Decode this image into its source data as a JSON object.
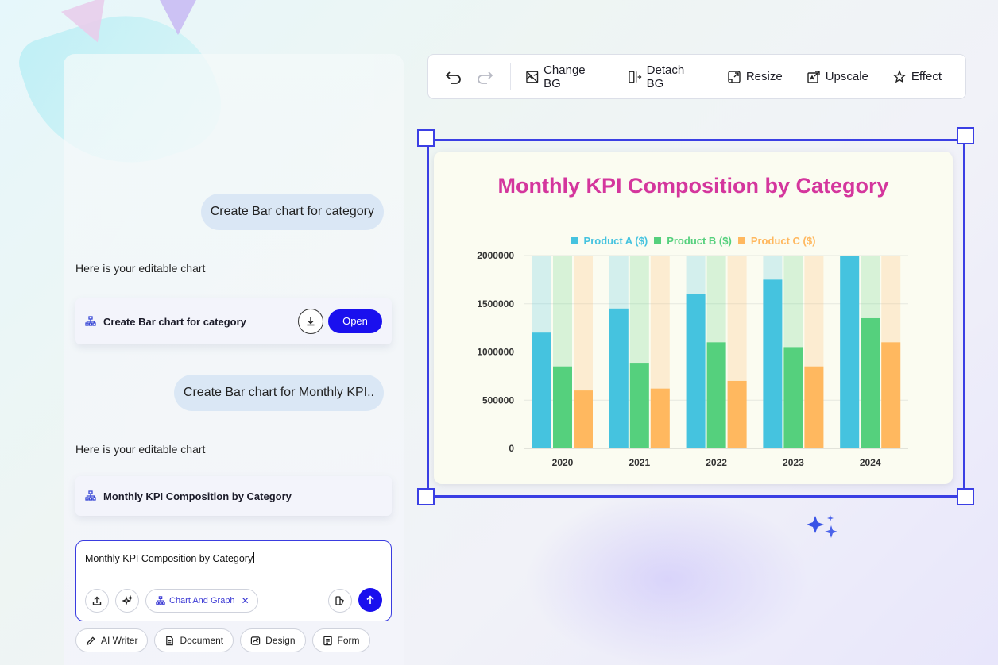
{
  "chat": {
    "messages": [
      {
        "role": "user",
        "text": "Create Bar chart for category"
      },
      {
        "role": "assistant",
        "text": "Here is your editable chart",
        "card_title": "Create Bar chart for category",
        "open_label": "Open"
      },
      {
        "role": "user",
        "text": "Create Bar chart for Monthly KPI.."
      },
      {
        "role": "assistant",
        "text": "Here is your editable chart",
        "card_title": "Monthly KPI Composition by Category"
      }
    ],
    "input": {
      "value": "Monthly KPI Composition by Category",
      "chip_label": "Chart And Graph"
    },
    "quick_actions": [
      "AI Writer",
      "Document",
      "Design",
      "Form"
    ]
  },
  "toolbar": {
    "change_bg": "Change BG",
    "detach_bg": "Detach BG",
    "resize": "Resize",
    "upscale": "Upscale",
    "effect": "Effect"
  },
  "colors": {
    "accent": "#1a10ee",
    "frame": "#3b3fe4",
    "title": "#d4369d",
    "product_a": "#45c3df",
    "product_b": "#55d07d",
    "product_c": "#ffb85f"
  },
  "chart_data": {
    "type": "bar",
    "title": "Monthly KPI Composition by Category",
    "categories": [
      "2020",
      "2021",
      "2022",
      "2023",
      "2024"
    ],
    "series": [
      {
        "name": "Product A ($)",
        "values": [
          1200000,
          1450000,
          1600000,
          1750000,
          2000000
        ]
      },
      {
        "name": "Product B ($)",
        "values": [
          850000,
          880000,
          1100000,
          1050000,
          1350000
        ]
      },
      {
        "name": "Product C ($)",
        "values": [
          600000,
          620000,
          700000,
          850000,
          1100000
        ]
      }
    ],
    "y_ticks": [
      "2000000",
      "1500000",
      "1000000",
      "500000",
      "0"
    ],
    "ylim": [
      0,
      2000000
    ],
    "legend_position": "top",
    "grid": true
  }
}
